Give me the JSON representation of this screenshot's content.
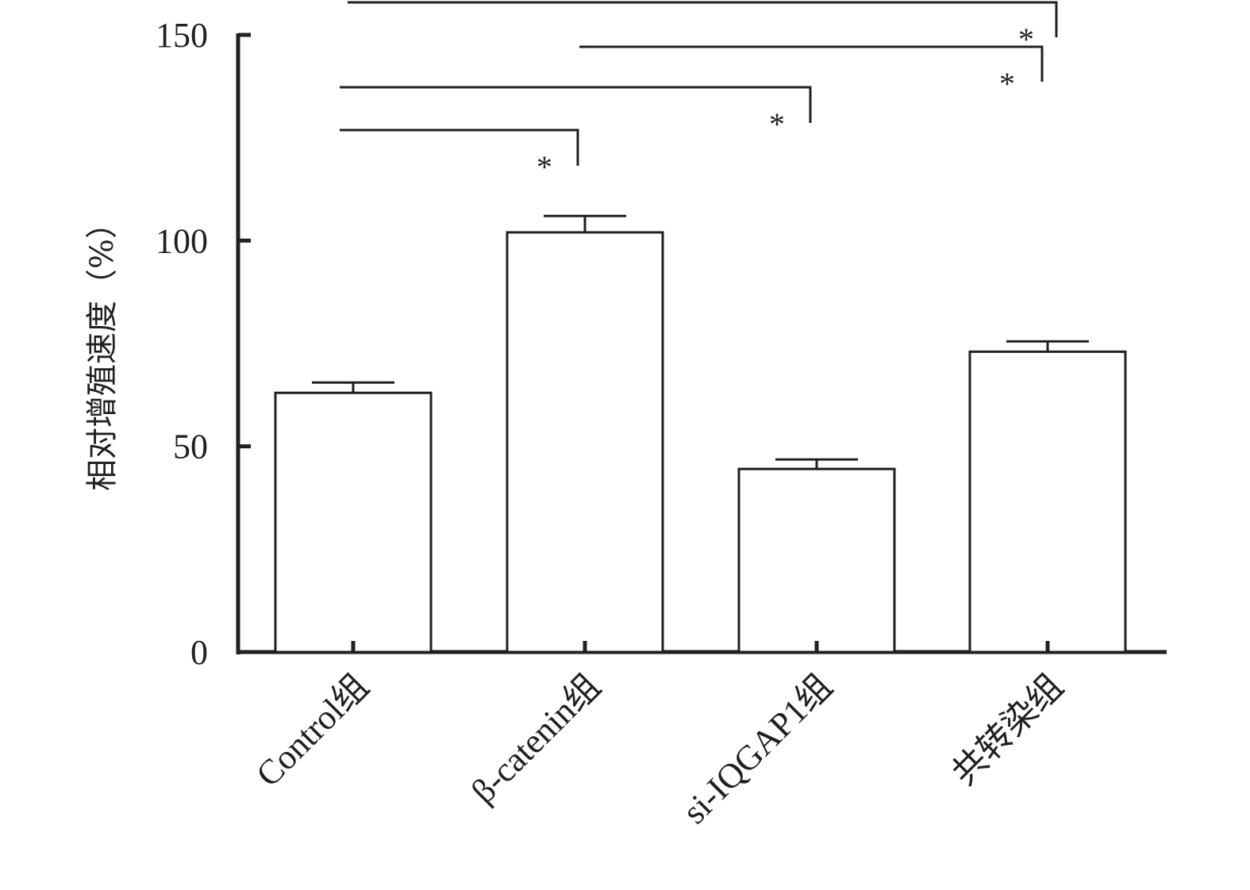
{
  "chart_data": {
    "type": "bar",
    "title": "",
    "xlabel": "",
    "ylabel": "相对增殖速度（%）",
    "categories": [
      "Control组",
      "β-catenin组",
      "si-IQGAP1组",
      "共转染组"
    ],
    "values": [
      63,
      102,
      44.5,
      73
    ],
    "errors": [
      2.5,
      4,
      2.3,
      2.5
    ],
    "ylim": [
      0,
      150
    ],
    "yticks": [
      "0",
      "50",
      "100",
      "150"
    ],
    "grid": false,
    "legend": "none",
    "bar_fill": "#ffffff",
    "stroke_color": "#231f20",
    "significance": [
      {
        "from": 0,
        "to": 1,
        "label": "*"
      },
      {
        "from": 0,
        "to": 2,
        "label": "*"
      },
      {
        "from": 1,
        "to": 3,
        "label": "*"
      },
      {
        "from": 0,
        "to": 3,
        "label": "*"
      }
    ]
  }
}
